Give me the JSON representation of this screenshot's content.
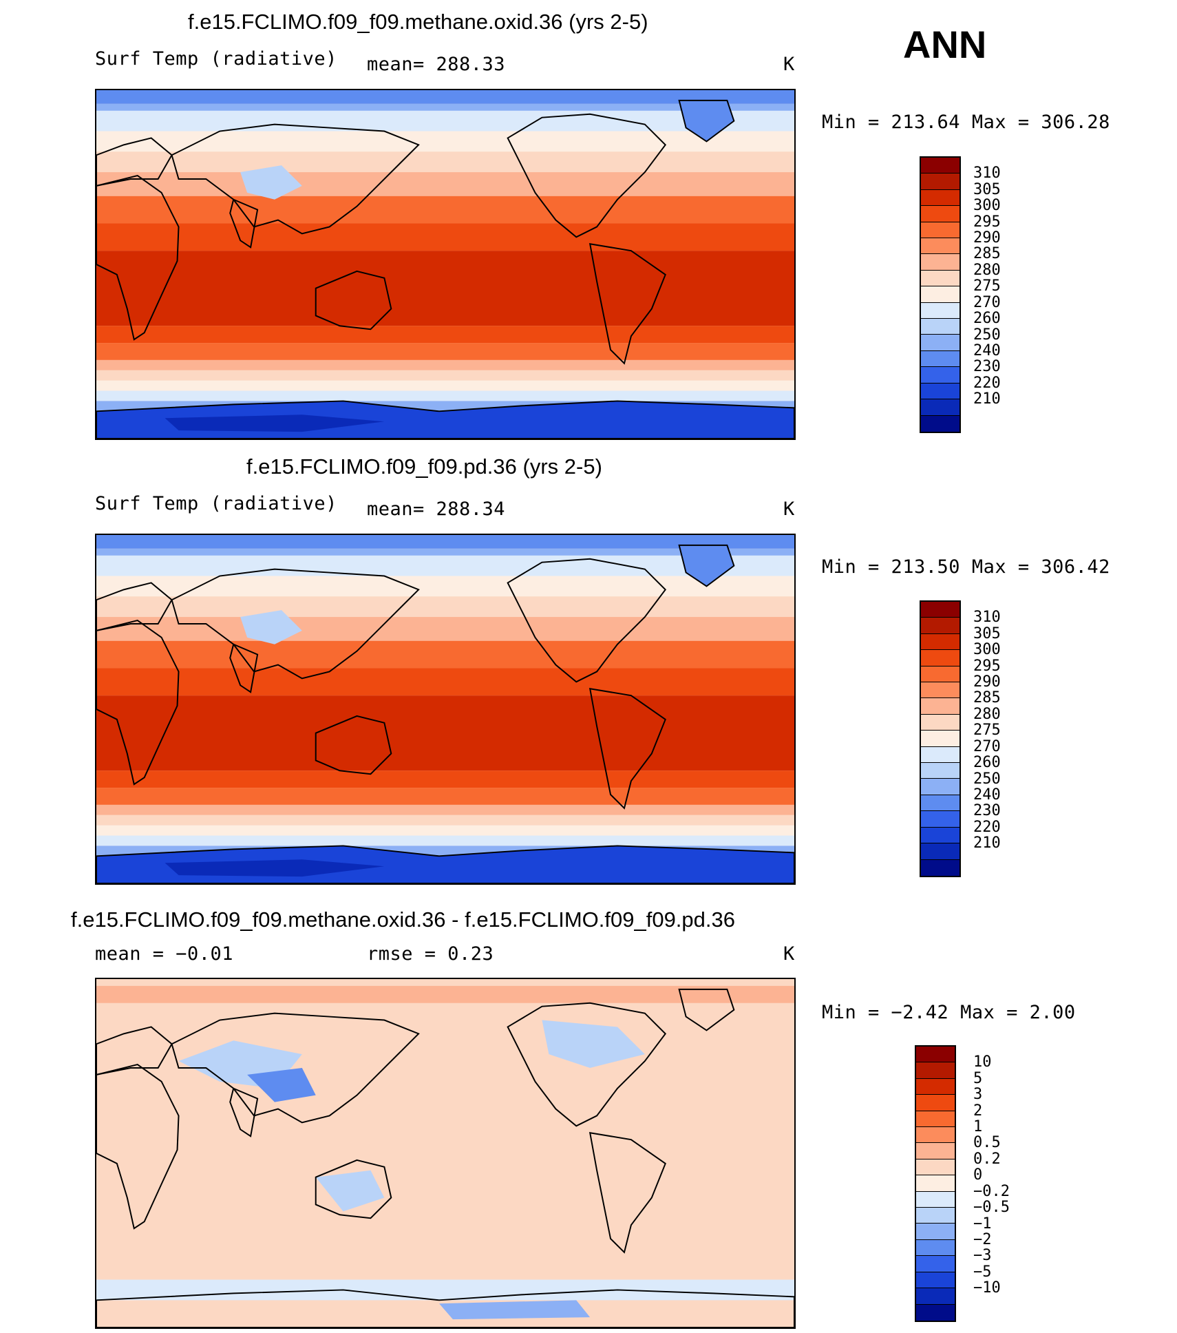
{
  "season": "ANN",
  "panels": [
    {
      "title": "f.e15.FCLIMO.f09_f09.methane.oxid.36 (yrs 2-5)",
      "left_label": "Surf Temp (radiative)",
      "center_label": "mean= 288.33",
      "units": "K",
      "minmax": "Min = 213.64 Max = 306.28",
      "colorbar": {
        "labels": [
          "310",
          "305",
          "300",
          "295",
          "290",
          "285",
          "280",
          "275",
          "270",
          "260",
          "250",
          "240",
          "230",
          "220",
          "210"
        ],
        "colors": [
          "#8b0000",
          "#b31a00",
          "#d42b00",
          "#ee4a10",
          "#f86a30",
          "#fc8c5c",
          "#fcb393",
          "#fcd8c3",
          "#fdeee2",
          "#dbeafb",
          "#b9d3f8",
          "#8cb0f5",
          "#5e8cf0",
          "#3462ea",
          "#1a44d8",
          "#0a2ab8",
          "#000c8a"
        ]
      },
      "map_type": "absolute"
    },
    {
      "title": "f.e15.FCLIMO.f09_f09.pd.36 (yrs 2-5)",
      "left_label": "Surf Temp (radiative)",
      "center_label": "mean= 288.34",
      "units": "K",
      "minmax": "Min = 213.50 Max = 306.42",
      "colorbar": {
        "labels": [
          "310",
          "305",
          "300",
          "295",
          "290",
          "285",
          "280",
          "275",
          "270",
          "260",
          "250",
          "240",
          "230",
          "220",
          "210"
        ],
        "colors": [
          "#8b0000",
          "#b31a00",
          "#d42b00",
          "#ee4a10",
          "#f86a30",
          "#fc8c5c",
          "#fcb393",
          "#fcd8c3",
          "#fdeee2",
          "#dbeafb",
          "#b9d3f8",
          "#8cb0f5",
          "#5e8cf0",
          "#3462ea",
          "#1a44d8",
          "#0a2ab8",
          "#000c8a"
        ]
      },
      "map_type": "absolute"
    },
    {
      "title": "f.e15.FCLIMO.f09_f09.methane.oxid.36 - f.e15.FCLIMO.f09_f09.pd.36",
      "left_label": "mean =   −0.01",
      "center_label": "rmse =    0.23",
      "units": "K",
      "minmax": "Min =   −2.42 Max =    2.00",
      "colorbar": {
        "labels": [
          "10",
          "5",
          "3",
          "2",
          "1",
          "0.5",
          "0.2",
          "0",
          "−0.2",
          "−0.5",
          "−1",
          "−2",
          "−3",
          "−5",
          "−10"
        ],
        "colors": [
          "#8b0000",
          "#b31a00",
          "#d42b00",
          "#ee4a10",
          "#f86a30",
          "#fc8c5c",
          "#fcb393",
          "#fcd8c3",
          "#fdeee2",
          "#dbeafb",
          "#b9d3f8",
          "#8cb0f5",
          "#5e8cf0",
          "#3462ea",
          "#1a44d8",
          "#0a2ab8",
          "#000c8a"
        ]
      },
      "map_type": "difference"
    }
  ]
}
